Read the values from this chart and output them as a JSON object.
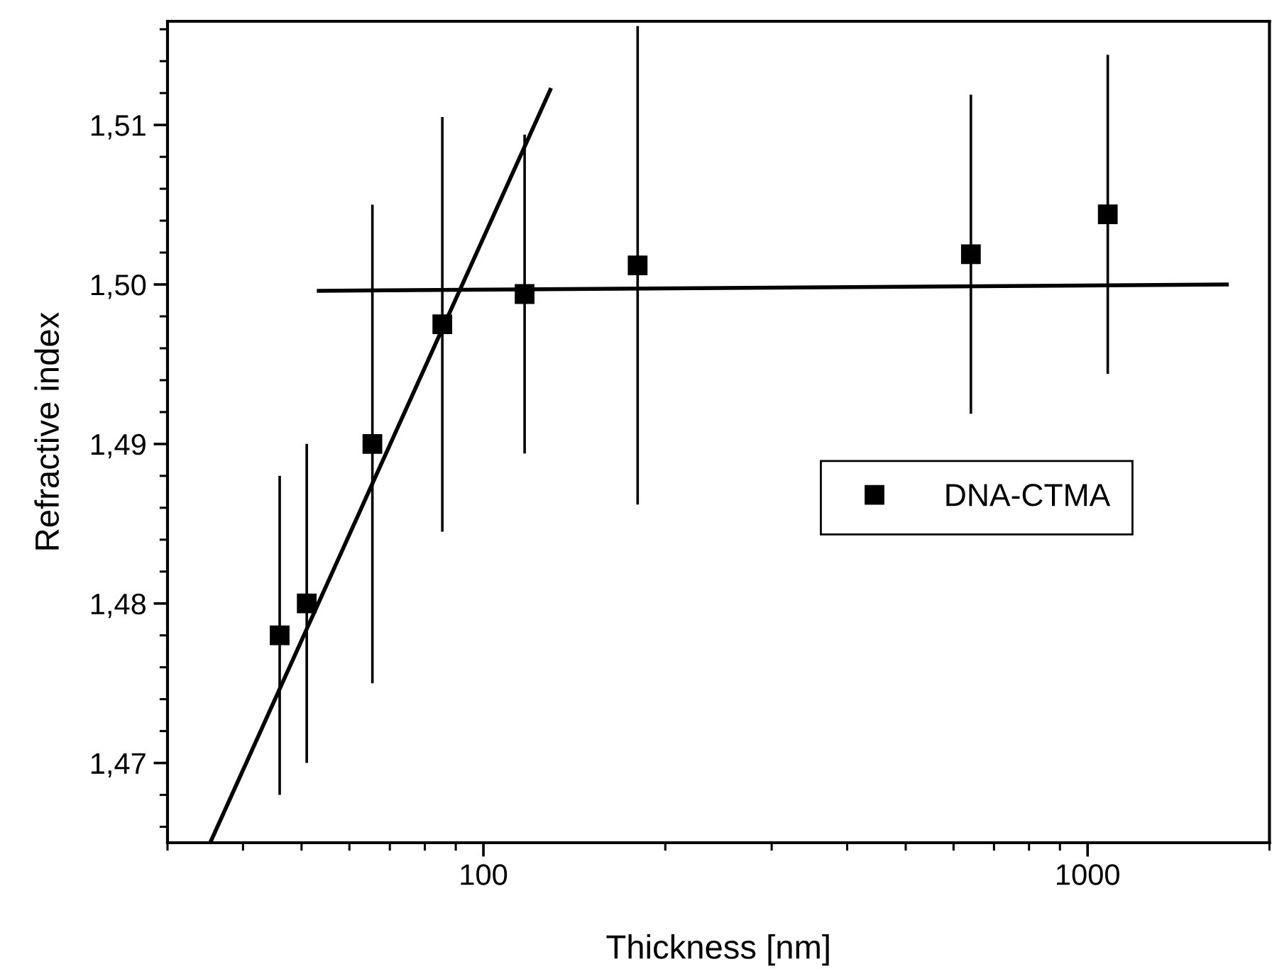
{
  "chart_data": {
    "type": "scatter",
    "xlabel": "Thickness [nm]",
    "ylabel": "Refractive index",
    "log": "x",
    "xlim": [
      30,
      2000
    ],
    "xticks": [
      100,
      1000
    ],
    "ylim": [
      1.465,
      1.5165
    ],
    "yticks": [
      {
        "value": 1.47,
        "label": "1,47"
      },
      {
        "value": 1.48,
        "label": "1,48"
      },
      {
        "value": 1.49,
        "label": "1,49"
      },
      {
        "value": 1.5,
        "label": "1,50"
      },
      {
        "value": 1.51,
        "label": "1,51"
      }
    ],
    "grid": false,
    "legend": "right",
    "series": [
      {
        "name": "DNA-CTMA",
        "color": "#000000",
        "marker": "square",
        "x": [
          46,
          51,
          65.5,
          85.5,
          117,
          180,
          641,
          1080
        ],
        "values": [
          1.478,
          1.48,
          1.49,
          1.4975,
          1.4994,
          1.5012,
          1.5019,
          1.5044
        ],
        "errors": [
          0.01,
          0.01,
          0.015,
          0.013,
          0.01,
          0.015,
          0.01,
          0.01
        ]
      },
      {
        "type": "line",
        "color": "#000000",
        "marker": "none",
        "line_style": "solid",
        "x": [
          35.3,
          129
        ],
        "values": [
          1.465,
          1.5122
        ]
      },
      {
        "type": "line",
        "color": "#000000",
        "marker": "none",
        "line_style": "solid",
        "x": [
          53.4,
          1700
        ],
        "values": [
          1.4996,
          1.5
        ]
      }
    ]
  }
}
